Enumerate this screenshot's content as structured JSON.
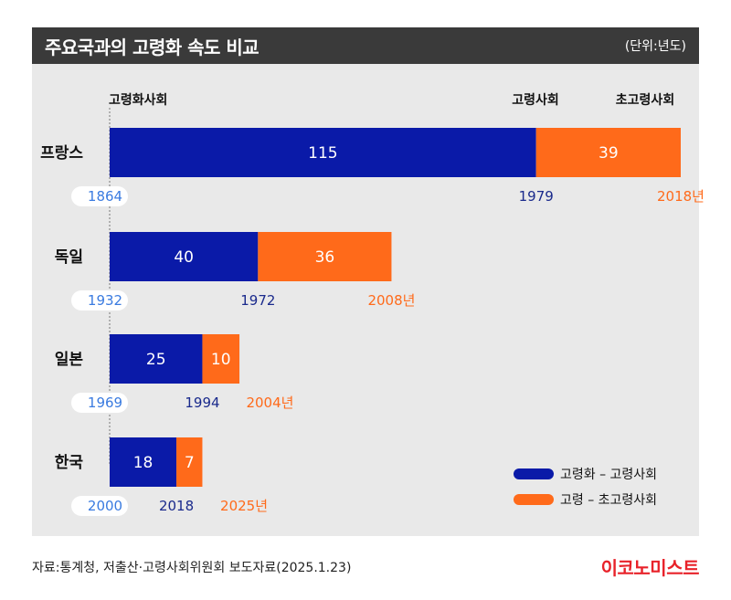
{
  "header": {
    "title": "주요국과의 고령화 속도 비교",
    "unit": "(단위:년도)"
  },
  "column_headers": {
    "aging": "고령화사회",
    "aged": "고령사회",
    "super_aged": "초고령사회"
  },
  "chart_data": {
    "type": "bar",
    "orientation": "horizontal",
    "stacked": true,
    "categories": [
      "프랑스",
      "독일",
      "일본",
      "한국"
    ],
    "series": [
      {
        "name": "고령화 – 고령사회",
        "values": [
          115,
          40,
          25,
          18
        ],
        "color": "#0a1aa8"
      },
      {
        "name": "고령 – 초고령사회",
        "values": [
          39,
          36,
          10,
          7
        ],
        "color": "#ff6a1a"
      }
    ],
    "years": {
      "start": [
        "1864",
        "1932",
        "1969",
        "2000"
      ],
      "aged": [
        "1979",
        "1972",
        "1994",
        "2018"
      ],
      "super_aged": [
        "2018년",
        "2008년",
        "2004년",
        "2025년"
      ]
    },
    "legend_position": "bottom-right",
    "grid": false
  },
  "colors": {
    "blue": "#0a1aa8",
    "orange": "#ff6a1a",
    "start_year": "#3a7be0",
    "aged_year": "#1a2a8c",
    "super_year": "#ff6a1a",
    "brand": "#e8222a"
  },
  "footer": {
    "source": "자료:통계청, 저출산·고령사회위원회 보도자료(2025.1.23)",
    "brand": "이코노미스트"
  }
}
